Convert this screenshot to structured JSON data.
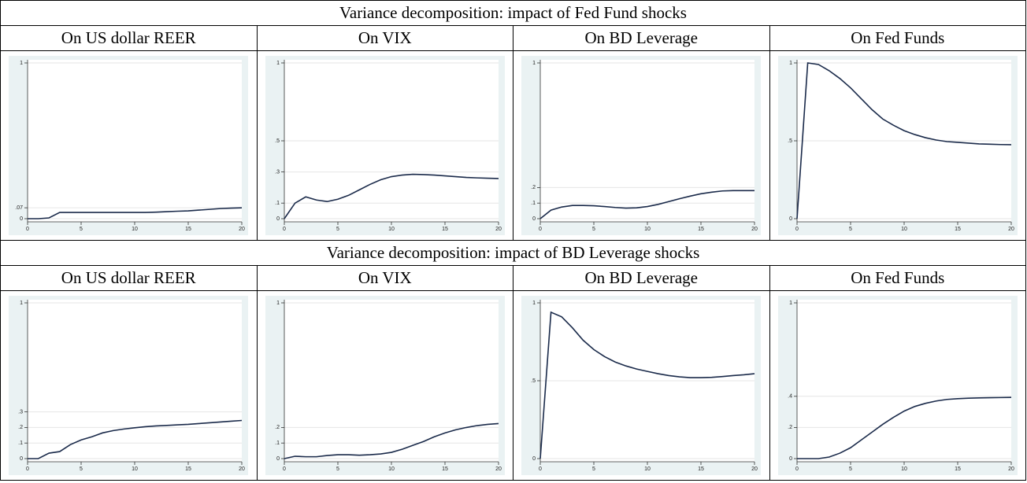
{
  "sections": [
    "Variance decomposition:  impact of Fed Fund shocks",
    "Variance decomposition:  impact of BD Leverage shocks"
  ],
  "chart_data": [
    {
      "type": "line",
      "title": "On US dollar REER",
      "x": [
        0,
        1,
        2,
        3,
        4,
        5,
        6,
        7,
        8,
        9,
        10,
        11,
        12,
        13,
        14,
        15,
        16,
        17,
        18,
        19,
        20
      ],
      "values": [
        0,
        0,
        0.005,
        0.04,
        0.04,
        0.04,
        0.04,
        0.04,
        0.04,
        0.04,
        0.04,
        0.04,
        0.042,
        0.045,
        0.048,
        0.05,
        0.055,
        0.06,
        0.065,
        0.068,
        0.07
      ],
      "color": "#1a2a4a",
      "xlim": [
        0,
        20
      ],
      "xticks": [
        0,
        5,
        10,
        15,
        20
      ],
      "ylim": [
        0,
        1
      ],
      "yticks": [
        0,
        {
          "value": 0.07,
          "label": ".07"
        },
        1
      ],
      "grid": true
    },
    {
      "type": "line",
      "title": "On VIX",
      "x": [
        0,
        1,
        2,
        3,
        4,
        5,
        6,
        7,
        8,
        9,
        10,
        11,
        12,
        13,
        14,
        15,
        16,
        17,
        18,
        19,
        20
      ],
      "values": [
        0,
        0.1,
        0.14,
        0.12,
        0.11,
        0.125,
        0.15,
        0.185,
        0.22,
        0.25,
        0.27,
        0.28,
        0.285,
        0.283,
        0.28,
        0.275,
        0.27,
        0.265,
        0.262,
        0.26,
        0.258
      ],
      "color": "#1a2a4a",
      "xlim": [
        0,
        20
      ],
      "xticks": [
        0,
        5,
        10,
        15,
        20
      ],
      "ylim": [
        0,
        1
      ],
      "yticks": [
        0,
        {
          "value": 0.1,
          "label": ".1"
        },
        {
          "value": 0.3,
          "label": ".3"
        },
        {
          "value": 0.5,
          "label": ".5"
        },
        1
      ],
      "grid": true
    },
    {
      "type": "line",
      "title": "On BD Leverage",
      "x": [
        0,
        1,
        2,
        3,
        4,
        5,
        6,
        7,
        8,
        9,
        10,
        11,
        12,
        13,
        14,
        15,
        16,
        17,
        18,
        19,
        20
      ],
      "values": [
        0,
        0.055,
        0.075,
        0.085,
        0.085,
        0.083,
        0.078,
        0.072,
        0.068,
        0.07,
        0.078,
        0.092,
        0.11,
        0.128,
        0.145,
        0.16,
        0.17,
        0.178,
        0.18,
        0.18,
        0.18
      ],
      "color": "#1a2a4a",
      "xlim": [
        0,
        20
      ],
      "xticks": [
        0,
        5,
        10,
        15,
        20
      ],
      "ylim": [
        0,
        1
      ],
      "yticks": [
        0,
        {
          "value": 0.1,
          "label": ".1"
        },
        {
          "value": 0.2,
          "label": ".2"
        },
        1
      ],
      "grid": true
    },
    {
      "type": "line",
      "title": "On Fed Funds",
      "x": [
        0,
        1,
        2,
        3,
        4,
        5,
        6,
        7,
        8,
        9,
        10,
        11,
        12,
        13,
        14,
        15,
        16,
        17,
        18,
        19,
        20
      ],
      "values": [
        0,
        1,
        0.99,
        0.95,
        0.9,
        0.84,
        0.77,
        0.7,
        0.64,
        0.6,
        0.565,
        0.54,
        0.52,
        0.505,
        0.495,
        0.49,
        0.485,
        0.48,
        0.478,
        0.476,
        0.475
      ],
      "color": "#1a2a4a",
      "xlim": [
        0,
        20
      ],
      "xticks": [
        0,
        5,
        10,
        15,
        20
      ],
      "ylim": [
        0,
        1
      ],
      "yticks": [
        0,
        {
          "value": 0.5,
          "label": ".5"
        },
        1
      ],
      "grid": true
    },
    {
      "type": "line",
      "title": "On US dollar REER",
      "x": [
        0,
        1,
        2,
        3,
        4,
        5,
        6,
        7,
        8,
        9,
        10,
        11,
        12,
        13,
        14,
        15,
        16,
        17,
        18,
        19,
        20
      ],
      "values": [
        0,
        0,
        0.035,
        0.045,
        0.09,
        0.12,
        0.14,
        0.165,
        0.18,
        0.19,
        0.198,
        0.205,
        0.21,
        0.213,
        0.217,
        0.22,
        0.225,
        0.23,
        0.235,
        0.24,
        0.245
      ],
      "color": "#1a2a4a",
      "xlim": [
        0,
        20
      ],
      "xticks": [
        0,
        5,
        10,
        15,
        20
      ],
      "ylim": [
        0,
        1
      ],
      "yticks": [
        0,
        {
          "value": 0.1,
          "label": ".1"
        },
        {
          "value": 0.2,
          "label": ".2"
        },
        {
          "value": 0.3,
          "label": ".3"
        },
        1
      ],
      "grid": true
    },
    {
      "type": "line",
      "title": "On VIX",
      "x": [
        0,
        1,
        2,
        3,
        4,
        5,
        6,
        7,
        8,
        9,
        10,
        11,
        12,
        13,
        14,
        15,
        16,
        17,
        18,
        19,
        20
      ],
      "values": [
        0,
        0.015,
        0.012,
        0.012,
        0.02,
        0.025,
        0.025,
        0.022,
        0.025,
        0.03,
        0.04,
        0.06,
        0.085,
        0.11,
        0.14,
        0.165,
        0.185,
        0.2,
        0.212,
        0.22,
        0.225
      ],
      "color": "#1a2a4a",
      "xlim": [
        0,
        20
      ],
      "xticks": [
        0,
        5,
        10,
        15,
        20
      ],
      "ylim": [
        0,
        1
      ],
      "yticks": [
        0,
        {
          "value": 0.1,
          "label": ".1"
        },
        {
          "value": 0.2,
          "label": ".2"
        },
        1
      ],
      "grid": true
    },
    {
      "type": "line",
      "title": "On BD Leverage",
      "x": [
        0,
        1,
        2,
        3,
        4,
        5,
        6,
        7,
        8,
        9,
        10,
        11,
        12,
        13,
        14,
        15,
        16,
        17,
        18,
        19,
        20
      ],
      "values": [
        0,
        0.94,
        0.91,
        0.84,
        0.76,
        0.7,
        0.655,
        0.62,
        0.595,
        0.575,
        0.56,
        0.545,
        0.533,
        0.525,
        0.52,
        0.52,
        0.522,
        0.527,
        0.533,
        0.538,
        0.545
      ],
      "color": "#1a2a4a",
      "xlim": [
        0,
        20
      ],
      "xticks": [
        0,
        5,
        10,
        15,
        20
      ],
      "ylim": [
        0,
        1
      ],
      "yticks": [
        0,
        {
          "value": 0.5,
          "label": ".5"
        },
        1
      ],
      "grid": true
    },
    {
      "type": "line",
      "title": "On Fed Funds",
      "x": [
        0,
        1,
        2,
        3,
        4,
        5,
        6,
        7,
        8,
        9,
        10,
        11,
        12,
        13,
        14,
        15,
        16,
        17,
        18,
        19,
        20
      ],
      "values": [
        0,
        0,
        0,
        0.01,
        0.035,
        0.07,
        0.12,
        0.17,
        0.22,
        0.265,
        0.305,
        0.335,
        0.355,
        0.37,
        0.38,
        0.385,
        0.388,
        0.39,
        0.391,
        0.392,
        0.393
      ],
      "color": "#1a2a4a",
      "xlim": [
        0,
        20
      ],
      "xticks": [
        0,
        5,
        10,
        15,
        20
      ],
      "ylim": [
        0,
        1
      ],
      "yticks": [
        0,
        {
          "value": 0.2,
          "label": ".2"
        },
        {
          "value": 0.4,
          "label": ".4"
        },
        1
      ],
      "grid": true
    }
  ]
}
